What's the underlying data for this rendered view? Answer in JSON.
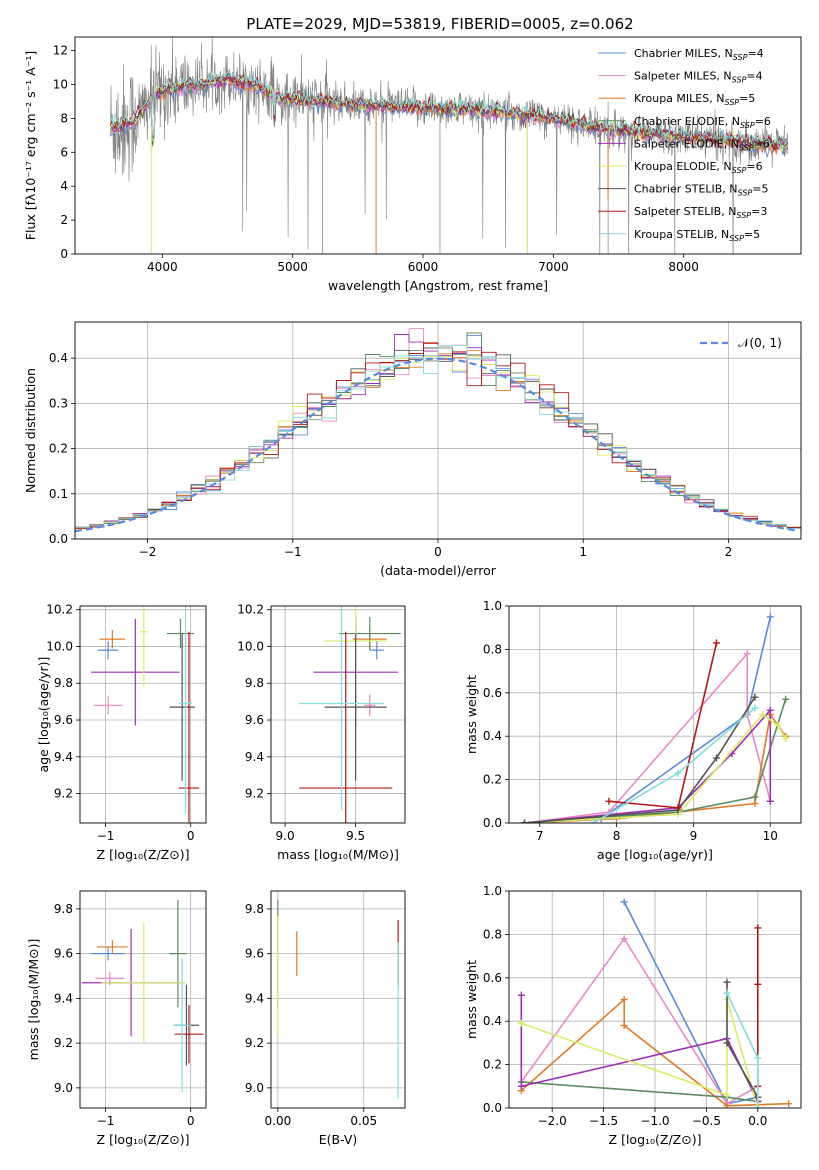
{
  "figure_title": "PLATE=2029, MJD=53819, FIBERID=0005, z=0.062",
  "colors": {
    "Chabrier MILES": "#5b8ad8",
    "Salpeter MILES": "#e88ac4",
    "Kroupa MILES": "#e07b2a",
    "Chabrier ELODIE": "#5e8a62",
    "Salpeter ELODIE": "#9b2fb5",
    "Kroupa ELODIE": "#d8ec6a",
    "Chabrier STELIB": "#555555",
    "Salpeter STELIB": "#b01818",
    "Kroupa STELIB": "#86dcdc",
    "gauss": "#5b8ad8"
  },
  "chart_data": [
    {
      "id": "spectrum",
      "type": "line",
      "xlabel": "wavelength [Angstrom, rest frame]",
      "ylabel": "Flux [fλ10⁻¹⁷ erg cm⁻² s⁻¹ A⁻¹]",
      "xlim": [
        3330,
        8900
      ],
      "ylim": [
        0,
        12.8
      ],
      "xticks": [
        4000,
        5000,
        6000,
        7000,
        8000
      ],
      "yticks": [
        0,
        2,
        4,
        6,
        8,
        10,
        12
      ],
      "grid": false,
      "legend_position": "top-right",
      "legend": [
        {
          "name": "Chabrier MILES",
          "nssp": "=4"
        },
        {
          "name": "Salpeter MILES",
          "nssp": "=4"
        },
        {
          "name": "Kroupa MILES",
          "nssp": "=5"
        },
        {
          "name": "Chabrier ELODIE",
          "nssp": "=6"
        },
        {
          "name": "Salpeter ELODIE",
          "nssp": "=6"
        },
        {
          "name": "Kroupa ELODIE",
          "nssp": "=6"
        },
        {
          "name": "Chabrier STELIB",
          "nssp": "=5"
        },
        {
          "name": "Salpeter STELIB",
          "nssp": "=3"
        },
        {
          "name": "Kroupa STELIB",
          "nssp": "=5"
        }
      ],
      "legend_sub": "SSP",
      "continuum": {
        "x": [
          3600,
          3700,
          3800,
          3950,
          4100,
          4300,
          4500,
          4700,
          4900,
          5200,
          5500,
          5800,
          6100,
          6400,
          6700,
          7000,
          7300,
          7600,
          7900,
          8200,
          8500,
          8800
        ],
        "y": [
          7.5,
          7.6,
          8.0,
          9.5,
          9.8,
          10.0,
          10.3,
          10.0,
          9.2,
          9.0,
          8.8,
          8.7,
          8.6,
          8.5,
          8.3,
          8.0,
          7.5,
          7.2,
          7.0,
          6.8,
          6.5,
          6.4
        ]
      }
    },
    {
      "id": "residuals",
      "type": "step",
      "xlabel": "(data-model)/error",
      "ylabel": "Normed distribution",
      "xlim": [
        -2.5,
        2.5
      ],
      "ylim": [
        0,
        0.48
      ],
      "xticks": [
        -2,
        -1,
        0,
        1,
        2
      ],
      "yticks": [
        0.0,
        0.1,
        0.2,
        0.3,
        0.4
      ],
      "grid": true,
      "legend_position": "top-right",
      "gaussian_label": "𝒩(0, 1)"
    },
    {
      "id": "age-vs-Z",
      "type": "errorbar",
      "xlabel": "Z [log₁₀(Z/Z⊙)]",
      "ylabel": "age  [log₁₀(age/yr)]",
      "xlim": [
        -1.3,
        0.18
      ],
      "ylim": [
        9.04,
        10.22
      ],
      "xticks": [
        -1,
        0
      ],
      "yticks": [
        9.2,
        9.4,
        9.6,
        9.8,
        10.0,
        10.2
      ],
      "grid": true,
      "points": [
        {
          "lib": "Chabrier MILES",
          "x": -0.97,
          "y": 9.98,
          "xerr": 0.12,
          "yerr": 0.05
        },
        {
          "lib": "Salpeter MILES",
          "x": -0.97,
          "y": 9.68,
          "xerr": 0.17,
          "yerr": 0.05
        },
        {
          "lib": "Kroupa MILES",
          "x": -0.92,
          "y": 10.04,
          "xerr": 0.15,
          "yerr": 0.05
        },
        {
          "lib": "Chabrier ELODIE",
          "x": -0.12,
          "y": 10.07,
          "xerr": 0.16,
          "yerr": 0.08
        },
        {
          "lib": "Salpeter ELODIE",
          "x": -0.65,
          "y": 9.86,
          "xerr": 0.52,
          "yerr": 0.29
        },
        {
          "lib": "Kroupa ELODIE",
          "x": -0.55,
          "y": 10.08,
          "xerr": 0.05,
          "yerr": 0.3
        },
        {
          "lib": "Chabrier STELIB",
          "x": -0.1,
          "y": 9.67,
          "xerr": 0.15,
          "yerr": 0.4
        },
        {
          "lib": "Salpeter STELIB",
          "x": -0.02,
          "y": 9.23,
          "xerr": 0.12,
          "yerr": 0.85
        },
        {
          "lib": "Kroupa STELIB",
          "x": -0.06,
          "y": 9.69,
          "xerr": 0.08,
          "yerr": 0.6
        }
      ]
    },
    {
      "id": "age-vs-mass",
      "type": "errorbar",
      "xlabel": "mass [log₁₀(M/M⊙)]",
      "ylabel": "",
      "xlim": [
        8.9,
        9.85
      ],
      "ylim": [
        9.04,
        10.22
      ],
      "xticks": [
        9.0,
        9.5
      ],
      "yticks": [
        9.2,
        9.4,
        9.6,
        9.8,
        10.0,
        10.2
      ],
      "grid": true,
      "points": [
        {
          "lib": "Chabrier MILES",
          "x": 9.65,
          "y": 9.98,
          "xerr": 0.05,
          "yerr": 0.05
        },
        {
          "lib": "Salpeter MILES",
          "x": 9.6,
          "y": 9.68,
          "xerr": 0.04,
          "yerr": 0.06
        },
        {
          "lib": "Kroupa MILES",
          "x": 9.6,
          "y": 10.04,
          "xerr": 0.12,
          "yerr": 0.05
        },
        {
          "lib": "Chabrier ELODIE",
          "x": 9.6,
          "y": 10.07,
          "xerr": 0.22,
          "yerr": 0.09
        },
        {
          "lib": "Salpeter ELODIE",
          "x": 9.5,
          "y": 9.86,
          "xerr": 0.3,
          "yerr": 0.3
        },
        {
          "lib": "Kroupa ELODIE",
          "x": 9.5,
          "y": 10.03,
          "xerr": 0.22,
          "yerr": 0.3
        },
        {
          "lib": "Chabrier STELIB",
          "x": 9.5,
          "y": 9.67,
          "xerr": 0.22,
          "yerr": 0.4
        },
        {
          "lib": "Salpeter STELIB",
          "x": 9.43,
          "y": 9.23,
          "xerr": 0.33,
          "yerr": 0.85
        },
        {
          "lib": "Kroupa STELIB",
          "x": 9.4,
          "y": 9.69,
          "xerr": 0.3,
          "yerr": 0.58
        }
      ]
    },
    {
      "id": "weight-vs-age",
      "type": "line",
      "xlabel": "age  [log₁₀(age/yr)]",
      "ylabel": "mass weight",
      "xlim": [
        6.6,
        10.4
      ],
      "ylim": [
        0,
        1.0
      ],
      "xticks": [
        7,
        8,
        9,
        10
      ],
      "yticks": [
        0.0,
        0.2,
        0.4,
        0.6,
        0.8,
        1.0
      ],
      "grid": true,
      "series": [
        {
          "lib": "Chabrier MILES",
          "x": [
            6.8,
            7.8,
            9.7,
            10.0
          ],
          "y": [
            0.0,
            0.02,
            0.5,
            0.95
          ]
        },
        {
          "lib": "Salpeter MILES",
          "x": [
            6.8,
            7.9,
            9.7,
            9.7,
            10.0
          ],
          "y": [
            0.0,
            0.05,
            0.78,
            0.5,
            0.1
          ]
        },
        {
          "lib": "Kroupa MILES",
          "x": [
            6.8,
            8.0,
            9.8,
            10.0,
            10.2
          ],
          "y": [
            0.0,
            0.02,
            0.09,
            0.5,
            0.4
          ]
        },
        {
          "lib": "Chabrier ELODIE",
          "x": [
            6.8,
            8.8,
            9.8,
            10.2
          ],
          "y": [
            0.0,
            0.05,
            0.12,
            0.57
          ]
        },
        {
          "lib": "Salpeter ELODIE",
          "x": [
            6.8,
            8.8,
            9.5,
            10.0,
            10.0
          ],
          "y": [
            0.0,
            0.07,
            0.32,
            0.52,
            0.1
          ]
        },
        {
          "lib": "Kroupa ELODIE",
          "x": [
            6.8,
            8.8,
            9.9,
            10.1,
            10.2
          ],
          "y": [
            0.0,
            0.04,
            0.5,
            0.45,
            0.39
          ]
        },
        {
          "lib": "Chabrier STELIB",
          "x": [
            6.8,
            8.8,
            9.3,
            9.8
          ],
          "y": [
            0.0,
            0.06,
            0.3,
            0.58
          ]
        },
        {
          "lib": "Salpeter STELIB",
          "x": [
            7.9,
            8.8,
            9.3
          ],
          "y": [
            0.1,
            0.07,
            0.83
          ]
        },
        {
          "lib": "Kroupa STELIB",
          "x": [
            7.7,
            8.8,
            9.8
          ],
          "y": [
            0.0,
            0.23,
            0.53
          ]
        }
      ]
    },
    {
      "id": "mass-vs-Z",
      "type": "errorbar",
      "xlabel": "Z [log₁₀(Z/Z⊙)]",
      "ylabel": "mass [log₁₀(M/M⊙)]",
      "xlim": [
        -1.3,
        0.18
      ],
      "ylim": [
        8.91,
        9.88
      ],
      "xticks": [
        -1,
        0
      ],
      "yticks": [
        9.0,
        9.2,
        9.4,
        9.6,
        9.8
      ],
      "grid": true,
      "points": [
        {
          "lib": "Chabrier MILES",
          "x": -0.97,
          "y": 9.6,
          "xerr": 0.2,
          "yerr": 0.03
        },
        {
          "lib": "Salpeter MILES",
          "x": -0.95,
          "y": 9.49,
          "xerr": 0.17,
          "yerr": 0.03
        },
        {
          "lib": "Kroupa MILES",
          "x": -0.92,
          "y": 9.63,
          "xerr": 0.18,
          "yerr": 0.03
        },
        {
          "lib": "Chabrier ELODIE",
          "x": -0.15,
          "y": 9.6,
          "xerr": 0.1,
          "yerr": 0.24
        },
        {
          "lib": "Salpeter ELODIE",
          "x": -0.7,
          "y": 9.47,
          "xerr": 0.58,
          "yerr": 0.24
        },
        {
          "lib": "Kroupa ELODIE",
          "x": -0.55,
          "y": 9.47,
          "xerr": 0.5,
          "yerr": 0.27
        },
        {
          "lib": "Chabrier STELIB",
          "x": -0.05,
          "y": 9.28,
          "xerr": 0.15,
          "yerr": 0.18
        },
        {
          "lib": "Salpeter STELIB",
          "x": -0.02,
          "y": 9.24,
          "xerr": 0.17,
          "yerr": 0.13
        },
        {
          "lib": "Kroupa STELIB",
          "x": -0.1,
          "y": 9.28,
          "xerr": 0.1,
          "yerr": 0.3
        }
      ]
    },
    {
      "id": "mass-vs-EBV",
      "type": "errorbar",
      "xlabel": "E(B-V)",
      "ylabel": "",
      "xlim": [
        -0.004,
        0.074
      ],
      "ylim": [
        8.91,
        9.88
      ],
      "xticks": [
        0.0,
        0.05
      ],
      "yticks": [
        9.0,
        9.2,
        9.4,
        9.6,
        9.8
      ],
      "grid": true,
      "points": [
        {
          "lib": "Chabrier ELODIE",
          "x": 0.0,
          "y": 9.6,
          "xerr": 0,
          "yerr": 0.24
        },
        {
          "lib": "Kroupa ELODIE",
          "x": 0.0,
          "y": 9.5,
          "xerr": 0,
          "yerr": 0.27
        },
        {
          "lib": "Kroupa MILES",
          "x": 0.011,
          "y": 9.6,
          "xerr": 0,
          "yerr": 0.1
        },
        {
          "lib": "Salpeter STELIB",
          "x": 0.07,
          "y": 9.6,
          "xerr": 0,
          "yerr": 0.15
        },
        {
          "lib": "Kroupa STELIB",
          "x": 0.07,
          "y": 9.3,
          "xerr": 0,
          "yerr": 0.35
        }
      ]
    },
    {
      "id": "weight-vs-Z",
      "type": "line",
      "xlabel": "Z [log₁₀(Z/Z⊙)]",
      "ylabel": "mass weight",
      "xlim": [
        -2.42,
        0.42
      ],
      "ylim": [
        0,
        1.0
      ],
      "xticks": [
        -2.0,
        -1.5,
        -1.0,
        -0.5,
        0.0
      ],
      "yticks": [
        0.0,
        0.2,
        0.4,
        0.6,
        0.8,
        1.0
      ],
      "grid": true,
      "series": [
        {
          "lib": "Chabrier MILES",
          "x": [
            -1.3,
            -0.3,
            0.0
          ],
          "y": [
            0.95,
            0.02,
            0.05
          ]
        },
        {
          "lib": "Salpeter MILES",
          "x": [
            -2.3,
            -1.3,
            -0.3,
            0.0
          ],
          "y": [
            0.12,
            0.78,
            0.02,
            0.1
          ]
        },
        {
          "lib": "Kroupa MILES",
          "x": [
            -2.3,
            -1.3,
            -1.3,
            -0.3,
            0.3
          ],
          "y": [
            0.08,
            0.5,
            0.38,
            0.01,
            0.02
          ]
        },
        {
          "lib": "Chabrier ELODIE",
          "x": [
            -2.3,
            -0.3,
            0.0
          ],
          "y": [
            0.12,
            0.05,
            0.03
          ]
        },
        {
          "lib": "Salpeter ELODIE",
          "x": [
            -2.3,
            -2.3,
            -0.3,
            0.0
          ],
          "y": [
            0.52,
            0.1,
            0.32,
            0.03
          ]
        },
        {
          "lib": "Kroupa ELODIE",
          "x": [
            -2.3,
            -0.3,
            -0.3,
            0.0
          ],
          "y": [
            0.39,
            0.06,
            0.5,
            0.0
          ]
        },
        {
          "lib": "Chabrier STELIB",
          "x": [
            -0.3,
            -0.3,
            0.0
          ],
          "y": [
            0.58,
            0.3,
            0.05
          ]
        },
        {
          "lib": "Salpeter STELIB",
          "x": [
            0.0,
            0.0,
            0.0
          ],
          "y": [
            0.83,
            0.57,
            0.1
          ]
        },
        {
          "lib": "Kroupa STELIB",
          "x": [
            -0.3,
            0.0,
            0.0
          ],
          "y": [
            0.53,
            0.23,
            0.0
          ]
        }
      ]
    }
  ]
}
